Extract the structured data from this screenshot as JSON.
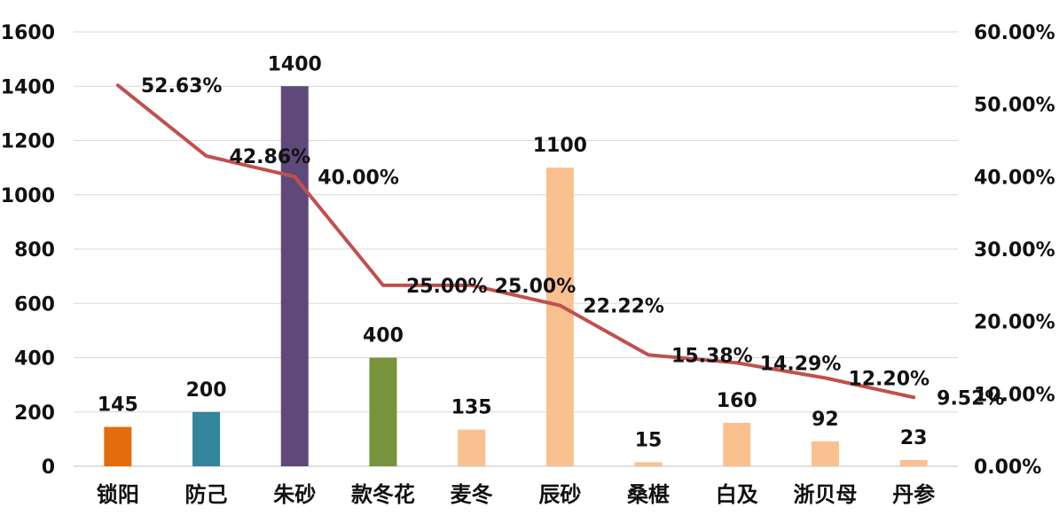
{
  "chart_data": {
    "type": "bar",
    "combo": "bar-line-dual-axis",
    "categories": [
      "锁阳",
      "防己",
      "朱砂",
      "款冬花",
      "麦冬",
      "辰砂",
      "桑椹",
      "白及",
      "浙贝母",
      "丹参"
    ],
    "series": [
      {
        "type": "bar",
        "axis": "left",
        "values": [
          145,
          200,
          1400,
          400,
          135,
          1100,
          15,
          160,
          92,
          23
        ],
        "value_labels": [
          "145",
          "200",
          "1400",
          "400",
          "135",
          "1100",
          "15",
          "160",
          "92",
          "23"
        ],
        "colors": [
          "#e46c0a",
          "#31859c",
          "#5f497a",
          "#77933c",
          "#fac090",
          "#fac090",
          "#fac090",
          "#fac090",
          "#fac090",
          "#fac090"
        ]
      },
      {
        "type": "line",
        "axis": "right",
        "values": [
          52.63,
          42.86,
          40.0,
          25.0,
          25.0,
          22.22,
          15.38,
          14.29,
          12.2,
          9.52
        ],
        "value_labels": [
          "52.63%",
          "42.86%",
          "40.00%",
          "25.00%",
          "25.00%",
          "22.22%",
          "15.38%",
          "14.29%",
          "12.20%",
          "9.52%"
        ],
        "color": "#c0504d"
      }
    ],
    "left_axis": {
      "ylim": [
        0,
        1600
      ],
      "ticks": [
        "0",
        "200",
        "400",
        "600",
        "800",
        "1000",
        "1200",
        "1400",
        "1600"
      ]
    },
    "right_axis": {
      "ylim": [
        0,
        60
      ],
      "ticks": [
        "0.00%",
        "10.00%",
        "20.00%",
        "30.00%",
        "40.00%",
        "50.00%",
        "60.00%"
      ]
    },
    "title": "",
    "xlabel": "",
    "ylabel": "",
    "grid": true,
    "legend": "none"
  }
}
